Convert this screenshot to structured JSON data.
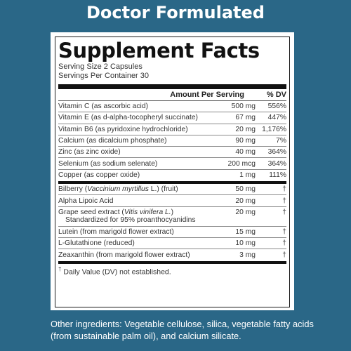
{
  "headline": "Doctor Formulated",
  "panel": {
    "title": "Supplement Facts",
    "serving_size": "Serving Size 2 Capsules",
    "servings_per_container": "Servings Per Container 30",
    "col_amount": "Amount Per Serving",
    "col_dv": "% DV",
    "vitamins": [
      {
        "name": "Vitamin C (as ascorbic acid)",
        "amount": "500 mg",
        "dv": "556%"
      },
      {
        "name": "Vitamin E (as d-alpha-tocopheryl succinate)",
        "amount": "67 mg",
        "dv": "447%"
      },
      {
        "name": "Vitamin B6 (as pyridoxine hydrochloride)",
        "amount": "20 mg",
        "dv": "1,176%"
      },
      {
        "name": "Calcium (as dicalcium phosphate)",
        "amount": "90 mg",
        "dv": "7%"
      },
      {
        "name": "Zinc (as zinc oxide)",
        "amount": "40 mg",
        "dv": "364%"
      },
      {
        "name": "Selenium (as sodium selenate)",
        "amount": "200 mcg",
        "dv": "364%"
      },
      {
        "name": "Copper (as copper oxide)",
        "amount": "1 mg",
        "dv": "111%"
      }
    ],
    "others": {
      "bilberry": {
        "pre": "Bilberry (",
        "latin": "Vaccinium myrtillus",
        "post": " L.) (fruit)",
        "amount": "50 mg",
        "dv": "†"
      },
      "alpha": {
        "name": "Alpha Lipoic Acid",
        "amount": "20 mg",
        "dv": "†"
      },
      "grape": {
        "pre": "Grape seed extract (",
        "latin": "Vitis vinifera L.",
        "post": ")",
        "sub": "Standardized for 95% proanthocyanidins",
        "amount": "20 mg",
        "dv": "†"
      },
      "lutein": {
        "name": "Lutein (from marigold flower extract)",
        "amount": "15 mg",
        "dv": "†"
      },
      "glut": {
        "name": "L-Glutathione (reduced)",
        "amount": "10 mg",
        "dv": "†"
      },
      "zea": {
        "name": "Zeaxanthin (from marigold flower extract)",
        "amount": "3 mg",
        "dv": "†"
      }
    },
    "footnote_mark": "†",
    "footnote": " Daily Value (DV) not established."
  },
  "other_ingredients": "Other ingredients: Vegetable cellulose, silica, vegetable fatty acids (from sustainable palm oil), and calcium silicate."
}
